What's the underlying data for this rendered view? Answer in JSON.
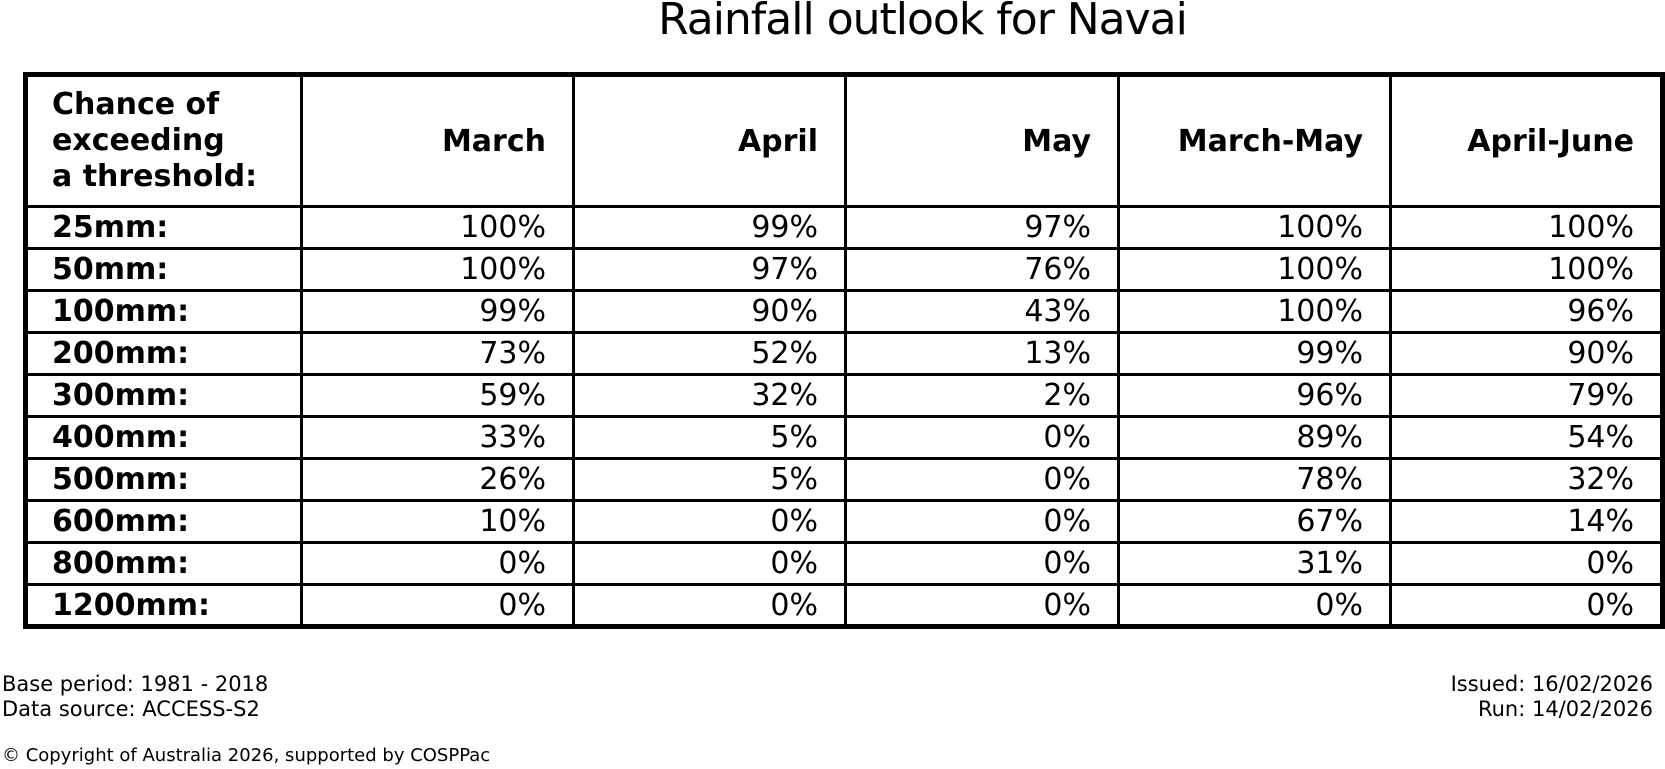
{
  "chart_data": {
    "type": "table",
    "title": "Rainfall outlook for Navai",
    "corner_header_lines": [
      "Chance of",
      "exceeding",
      "a threshold:"
    ],
    "columns": [
      "March",
      "April",
      "May",
      "March-May",
      "April-June"
    ],
    "rows": [
      {
        "threshold": "25mm:",
        "values": [
          "100%",
          "99%",
          "97%",
          "100%",
          "100%"
        ]
      },
      {
        "threshold": "50mm:",
        "values": [
          "100%",
          "97%",
          "76%",
          "100%",
          "100%"
        ]
      },
      {
        "threshold": "100mm:",
        "values": [
          "99%",
          "90%",
          "43%",
          "100%",
          "96%"
        ]
      },
      {
        "threshold": "200mm:",
        "values": [
          "73%",
          "52%",
          "13%",
          "99%",
          "90%"
        ]
      },
      {
        "threshold": "300mm:",
        "values": [
          "59%",
          "32%",
          "2%",
          "96%",
          "79%"
        ]
      },
      {
        "threshold": "400mm:",
        "values": [
          "33%",
          "5%",
          "0%",
          "89%",
          "54%"
        ]
      },
      {
        "threshold": "500mm:",
        "values": [
          "26%",
          "5%",
          "0%",
          "78%",
          "32%"
        ]
      },
      {
        "threshold": "600mm:",
        "values": [
          "10%",
          "0%",
          "0%",
          "67%",
          "14%"
        ]
      },
      {
        "threshold": "800mm:",
        "values": [
          "0%",
          "0%",
          "0%",
          "31%",
          "0%"
        ]
      },
      {
        "threshold": "1200mm:",
        "values": [
          "0%",
          "0%",
          "0%",
          "0%",
          "0%"
        ]
      }
    ],
    "legend_position": "none",
    "grid": "on"
  },
  "footer": {
    "base_period": "Base period: 1981 - 2018",
    "data_source": "Data source: ACCESS-S2",
    "issued": "Issued: 16/02/2026",
    "run": "Run: 14/02/2026",
    "copyright": "© Copyright of Australia 2026, supported by COSPPac"
  },
  "colors": {
    "text": "#000000",
    "background": "#ffffff",
    "border": "#000000"
  }
}
